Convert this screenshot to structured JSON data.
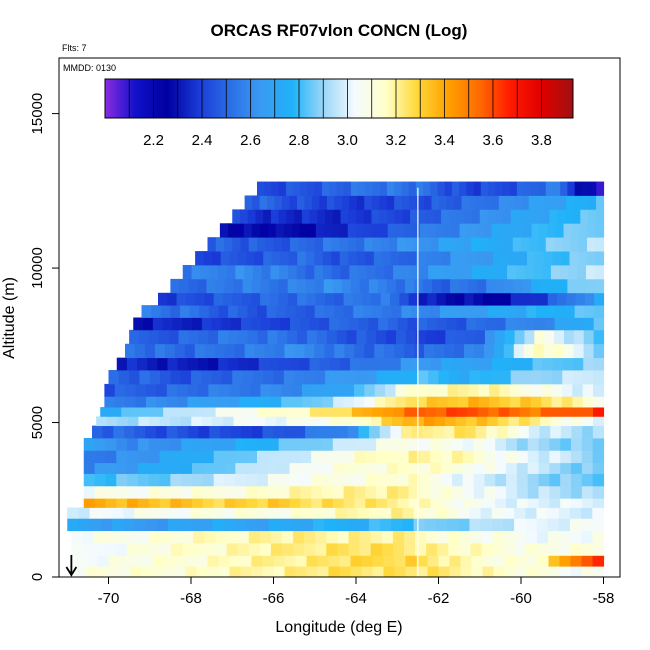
{
  "chart_data": {
    "type": "heatmap",
    "title": "ORCAS RF07vlon CONCN (Log)",
    "flights_label": "Flts: 7",
    "date_label": "MMDD: 0130",
    "xlabel": "Longitude (deg E)",
    "ylabel": "Altitude (m)",
    "xlim": [
      -71.2,
      -57.6
    ],
    "ylim": [
      0,
      16800
    ],
    "x_ticks": [
      -70,
      -68,
      -66,
      -64,
      -62,
      -60,
      -58
    ],
    "y_ticks": [
      0,
      5000,
      10000,
      15000
    ],
    "colorbar": {
      "range": [
        2.0,
        3.93
      ],
      "ticks": [
        "2.2",
        "2.4",
        "2.6",
        "2.8",
        "3.0",
        "3.2",
        "3.4",
        "3.6",
        "3.8"
      ],
      "colors": [
        "#8a2be2",
        "#1010c8",
        "#0000a0",
        "#1a3ad8",
        "#2b6ee6",
        "#3a9af2",
        "#1fb2f8",
        "#9ad6f8",
        "#f4fbff",
        "#ffffc8",
        "#ffd83a",
        "#ffa000",
        "#ff6a00",
        "#ff1a00",
        "#e00000",
        "#a01010"
      ]
    },
    "marker_line_lon": -62.5,
    "bottom_marker_lon": -70.9,
    "bands": [
      {
        "alt": [
          0,
          350
        ],
        "lon_min": -70.8,
        "values": [
          3.1,
          3.12,
          3.15,
          3.2,
          3.25,
          3.25,
          3.2,
          3.1,
          3.05
        ]
      },
      {
        "alt": [
          350,
          700
        ],
        "lon_min": -70.8,
        "values": [
          3.05,
          3.1,
          3.15,
          3.2,
          3.25,
          3.3,
          3.15,
          3.1,
          3.7
        ]
      },
      {
        "alt": [
          700,
          1100
        ],
        "lon_min": -70.9,
        "values": [
          3.0,
          3.1,
          3.15,
          3.2,
          3.25,
          3.25,
          3.15,
          3.1,
          3.1
        ]
      },
      {
        "alt": [
          1100,
          1500
        ],
        "lon_min": -70.9,
        "values": [
          3.05,
          3.1,
          3.15,
          3.2,
          3.2,
          3.2,
          3.1,
          3.05,
          3.05
        ]
      },
      {
        "alt": [
          1500,
          1900
        ],
        "lon_min": -71.0,
        "values": [
          2.7,
          2.65,
          2.7,
          2.7,
          2.75,
          2.8,
          2.9,
          3.0,
          3.05
        ]
      },
      {
        "alt": [
          1900,
          2250
        ],
        "lon_min": -71.0,
        "values": [
          3.0,
          3.05,
          3.1,
          3.1,
          3.15,
          3.2,
          3.05,
          3.0,
          3.0
        ]
      },
      {
        "alt": [
          2250,
          2550
        ],
        "lon_min": -70.6,
        "values": [
          3.4,
          3.35,
          3.3,
          3.3,
          3.25,
          3.2,
          3.05,
          3.0,
          3.0
        ]
      },
      {
        "alt": [
          2550,
          2950
        ],
        "lon_min": -70.6,
        "values": [
          3.05,
          3.1,
          3.1,
          3.15,
          3.2,
          3.2,
          3.05,
          2.95,
          2.9
        ]
      },
      {
        "alt": [
          2950,
          3350
        ],
        "lon_min": -70.6,
        "values": [
          2.8,
          2.85,
          2.95,
          3.05,
          3.1,
          3.15,
          3.0,
          2.9,
          2.85
        ]
      },
      {
        "alt": [
          3350,
          3700
        ],
        "lon_min": -70.6,
        "values": [
          2.6,
          2.7,
          2.85,
          3.0,
          3.1,
          3.15,
          3.1,
          2.95,
          2.85
        ]
      },
      {
        "alt": [
          3700,
          4100
        ],
        "lon_min": -70.6,
        "values": [
          2.55,
          2.65,
          2.8,
          2.95,
          3.1,
          3.2,
          3.15,
          3.0,
          2.9
        ]
      },
      {
        "alt": [
          4100,
          4500
        ],
        "lon_min": -70.6,
        "values": [
          2.65,
          2.6,
          2.7,
          2.8,
          2.95,
          3.1,
          3.05,
          2.9,
          2.85
        ]
      },
      {
        "alt": [
          4500,
          4900
        ],
        "lon_min": -70.4,
        "values": [
          2.5,
          2.45,
          2.4,
          2.45,
          2.6,
          3.2,
          3.25,
          3.0,
          2.9
        ]
      },
      {
        "alt": [
          4900,
          5200
        ],
        "lon_min": -70.3,
        "values": [
          2.9,
          2.95,
          3.0,
          3.05,
          3.1,
          3.4,
          3.35,
          3.2,
          3.0
        ]
      },
      {
        "alt": [
          5200,
          5500
        ],
        "lon_min": -70.2,
        "values": [
          2.75,
          2.9,
          3.05,
          3.15,
          3.3,
          3.55,
          3.6,
          3.5,
          3.65
        ]
      },
      {
        "alt": [
          5500,
          5850
        ],
        "lon_min": -70.1,
        "values": [
          2.55,
          2.6,
          2.7,
          2.8,
          3.0,
          3.3,
          3.35,
          3.3,
          3.1
        ]
      },
      {
        "alt": [
          5850,
          6250
        ],
        "lon_min": -70.1,
        "values": [
          2.45,
          2.5,
          2.55,
          2.6,
          2.75,
          3.15,
          3.2,
          3.1,
          2.95
        ]
      },
      {
        "alt": [
          6250,
          6700
        ],
        "lon_min": -70.0,
        "values": [
          2.5,
          2.45,
          2.5,
          2.55,
          2.65,
          2.8,
          2.75,
          2.9,
          3.0
        ]
      },
      {
        "alt": [
          6700,
          7100
        ],
        "lon_min": -69.8,
        "values": [
          2.35,
          2.3,
          2.35,
          2.45,
          2.5,
          2.65,
          2.7,
          2.8,
          2.9
        ]
      },
      {
        "alt": [
          7100,
          7550
        ],
        "lon_min": -69.6,
        "values": [
          2.55,
          2.5,
          2.55,
          2.6,
          2.5,
          2.5,
          2.55,
          3.2,
          2.9
        ]
      },
      {
        "alt": [
          7550,
          8000
        ],
        "lon_min": -69.5,
        "values": [
          2.45,
          2.5,
          2.55,
          2.5,
          2.45,
          2.4,
          2.5,
          3.1,
          2.8
        ]
      },
      {
        "alt": [
          8000,
          8400
        ],
        "lon_min": -69.4,
        "values": [
          2.3,
          2.35,
          2.4,
          2.45,
          2.5,
          2.45,
          2.5,
          2.6,
          2.8
        ]
      },
      {
        "alt": [
          8400,
          8800
        ],
        "lon_min": -69.2,
        "values": [
          2.55,
          2.5,
          2.45,
          2.5,
          2.55,
          2.6,
          2.7,
          2.75,
          2.85
        ]
      },
      {
        "alt": [
          8800,
          9200
        ],
        "lon_min": -68.8,
        "values": [
          2.4,
          2.45,
          2.5,
          2.5,
          2.55,
          2.3,
          2.25,
          2.4,
          2.7
        ]
      },
      {
        "alt": [
          9200,
          9650
        ],
        "lon_min": -68.5,
        "values": [
          2.5,
          2.55,
          2.55,
          2.6,
          2.55,
          2.5,
          2.55,
          2.75,
          2.9
        ]
      },
      {
        "alt": [
          9650,
          10100
        ],
        "lon_min": -68.2,
        "values": [
          2.55,
          2.6,
          2.55,
          2.5,
          2.55,
          2.65,
          2.75,
          2.85,
          2.95
        ]
      },
      {
        "alt": [
          10100,
          10550
        ],
        "lon_min": -67.9,
        "values": [
          2.4,
          2.45,
          2.5,
          2.45,
          2.5,
          2.6,
          2.7,
          2.8,
          2.9
        ]
      },
      {
        "alt": [
          10550,
          11000
        ],
        "lon_min": -67.6,
        "values": [
          2.5,
          2.45,
          2.5,
          2.55,
          2.6,
          2.7,
          2.75,
          2.85,
          2.95
        ]
      },
      {
        "alt": [
          11000,
          11450
        ],
        "lon_min": -67.3,
        "values": [
          2.3,
          2.25,
          2.3,
          2.4,
          2.5,
          2.6,
          2.7,
          2.8,
          2.9
        ]
      },
      {
        "alt": [
          11450,
          11900
        ],
        "lon_min": -67.0,
        "values": [
          2.4,
          2.35,
          2.35,
          2.4,
          2.45,
          2.55,
          2.65,
          2.75,
          2.85
        ]
      },
      {
        "alt": [
          11900,
          12350
        ],
        "lon_min": -66.7,
        "values": [
          2.5,
          2.45,
          2.4,
          2.4,
          2.45,
          2.5,
          2.6,
          2.7,
          2.8
        ]
      },
      {
        "alt": [
          12350,
          12800
        ],
        "lon_min": -66.4,
        "values": [
          2.4,
          2.45,
          2.5,
          2.55,
          2.5,
          2.4,
          2.45,
          2.55,
          2.1
        ]
      }
    ]
  }
}
